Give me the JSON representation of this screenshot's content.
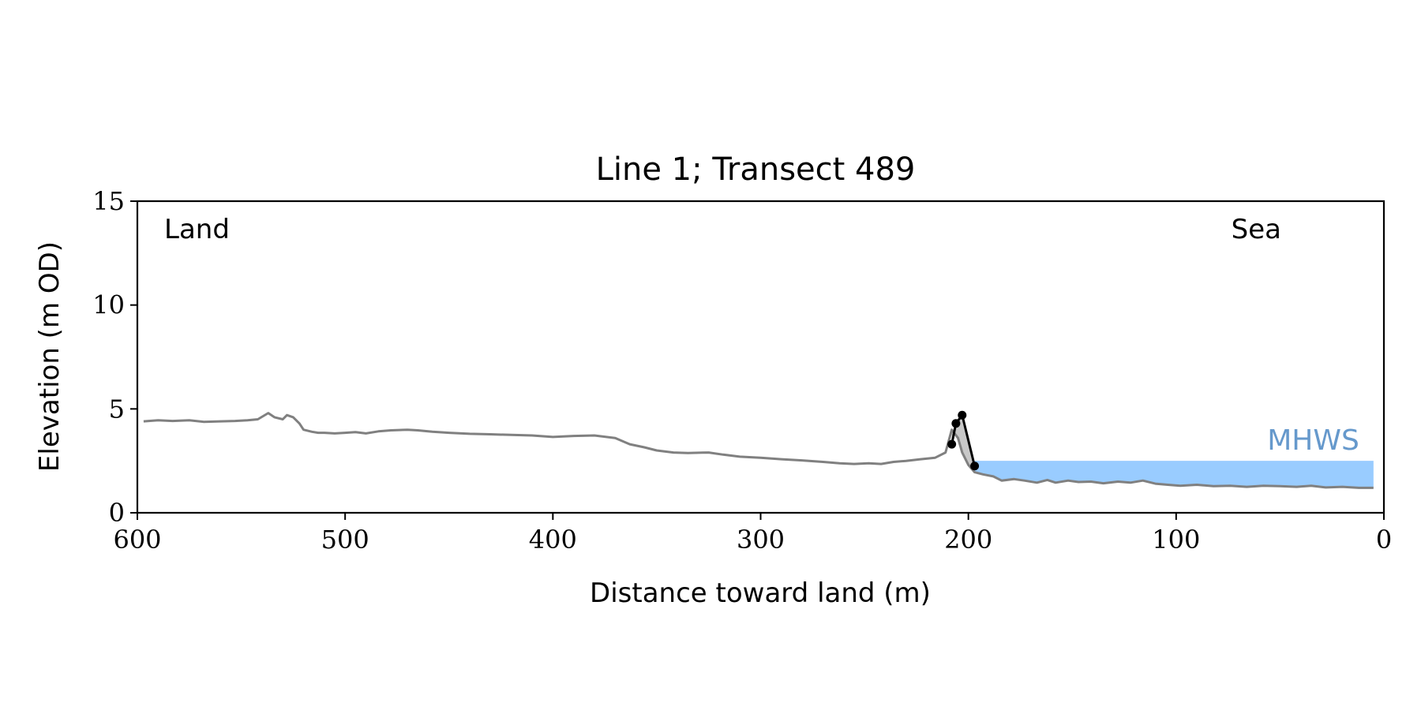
{
  "chart_data": {
    "type": "line",
    "title": "Line 1; Transect 489",
    "xlabel": "Distance toward land (m)",
    "ylabel": "Elevation (m OD)",
    "xlim": [
      600,
      0
    ],
    "ylim": [
      0,
      15
    ],
    "x_ticks": [
      "600",
      "500",
      "400",
      "300",
      "200",
      "100",
      "0"
    ],
    "y_ticks": [
      "0",
      "5",
      "10",
      "15"
    ],
    "grid": false,
    "annotations": {
      "land": "Land",
      "sea": "Sea",
      "mhws": "MHWS"
    },
    "mhws_level": 2.5,
    "mhws_range": [
      197,
      5
    ],
    "colors": {
      "profile": "#808080",
      "feature": "#000000",
      "feature_fill": "#c8c8c8",
      "water": "#99ccff",
      "mhws_label": "#6699cc"
    },
    "profile": {
      "x": [
        597,
        590,
        583,
        575,
        568,
        560,
        553,
        547,
        542,
        537,
        534,
        530,
        528,
        525,
        522,
        520,
        516,
        513,
        510,
        505,
        500,
        495,
        490,
        484,
        478,
        470,
        465,
        458,
        450,
        440,
        430,
        420,
        410,
        400,
        390,
        380,
        370,
        363,
        356,
        350,
        342,
        335,
        325,
        318,
        310,
        300,
        290,
        280,
        270,
        262,
        255,
        248,
        242,
        236,
        230,
        223,
        216,
        211,
        208,
        205,
        203,
        200,
        197,
        193,
        188,
        184,
        178,
        173,
        167,
        162,
        158,
        152,
        147,
        141,
        135,
        128,
        122,
        116,
        110,
        104,
        98,
        90,
        82,
        74,
        66,
        58,
        50,
        42,
        35,
        28,
        20,
        12,
        5
      ],
      "y": [
        4.4,
        4.45,
        4.42,
        4.45,
        4.38,
        4.4,
        4.42,
        4.45,
        4.5,
        4.8,
        4.6,
        4.5,
        4.7,
        4.6,
        4.3,
        4.0,
        3.9,
        3.85,
        3.85,
        3.82,
        3.85,
        3.88,
        3.82,
        3.92,
        3.97,
        4.0,
        3.97,
        3.9,
        3.85,
        3.8,
        3.78,
        3.75,
        3.72,
        3.65,
        3.7,
        3.72,
        3.6,
        3.3,
        3.15,
        3.0,
        2.9,
        2.88,
        2.9,
        2.8,
        2.7,
        2.65,
        2.58,
        2.52,
        2.45,
        2.38,
        2.35,
        2.38,
        2.35,
        2.45,
        2.5,
        2.58,
        2.65,
        2.9,
        4.0,
        3.6,
        2.9,
        2.3,
        1.95,
        1.85,
        1.75,
        1.55,
        1.62,
        1.55,
        1.45,
        1.58,
        1.45,
        1.55,
        1.48,
        1.5,
        1.42,
        1.5,
        1.45,
        1.55,
        1.4,
        1.35,
        1.3,
        1.35,
        1.28,
        1.3,
        1.25,
        1.3,
        1.28,
        1.25,
        1.3,
        1.22,
        1.25,
        1.2,
        1.2
      ]
    },
    "feature_points": {
      "x": [
        208,
        206,
        203,
        197
      ],
      "y": [
        3.3,
        4.3,
        4.7,
        2.25
      ]
    }
  }
}
